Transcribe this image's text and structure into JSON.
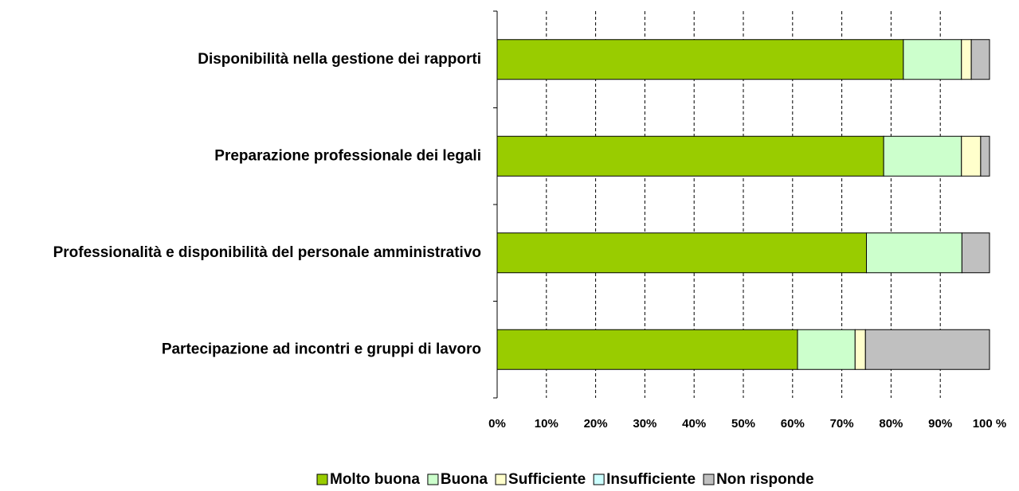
{
  "chart_data": {
    "type": "bar",
    "orientation": "horizontal",
    "stacked": true,
    "categories": [
      "Disponibilità nella gestione dei rapporti",
      "Preparazione professionale dei legali",
      "Professionalità e disponibilità del personale amministrativo",
      "Partecipazione ad incontri e gruppi di lavoro"
    ],
    "series": [
      {
        "name": "Molto buona",
        "color": "#99cc00",
        "values": [
          82.5,
          78.5,
          75,
          61
        ]
      },
      {
        "name": "Buona",
        "color": "#ccffcc",
        "values": [
          11.8,
          15.8,
          19.4,
          11.7
        ]
      },
      {
        "name": "Sufficiente",
        "color": "#ffffcc",
        "values": [
          2,
          3.9,
          0,
          2.1
        ]
      },
      {
        "name": "Insufficiente",
        "color": "#ccffff",
        "values": [
          0,
          0,
          0,
          0
        ]
      },
      {
        "name": "Non risponde",
        "color": "#c0c0c0",
        "values": [
          3.7,
          1.8,
          5.6,
          25.2
        ]
      }
    ],
    "xlim": [
      0,
      100
    ],
    "xticks": [
      {
        "value": 0,
        "label": "0%"
      },
      {
        "value": 10,
        "label": "10%"
      },
      {
        "value": 20,
        "label": "20%"
      },
      {
        "value": 30,
        "label": "30%"
      },
      {
        "value": 40,
        "label": "40%"
      },
      {
        "value": 50,
        "label": "50%"
      },
      {
        "value": 60,
        "label": "60%"
      },
      {
        "value": 70,
        "label": "70%"
      },
      {
        "value": 80,
        "label": "80%"
      },
      {
        "value": 90,
        "label": "90%"
      },
      {
        "value": 100,
        "label": "100 %"
      }
    ],
    "grid": true,
    "legend": "bottom"
  }
}
